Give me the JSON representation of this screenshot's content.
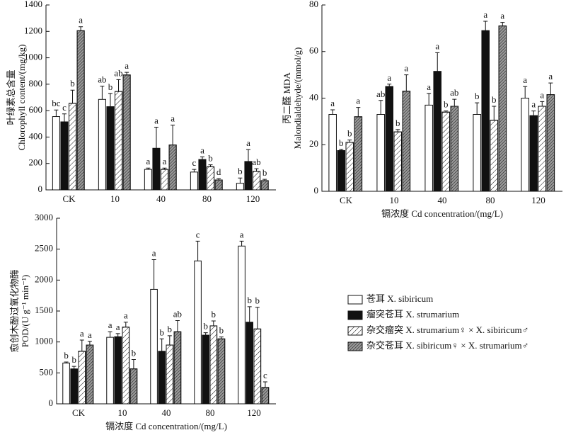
{
  "chart_data": [
    {
      "type": "bar",
      "ylabel": [
        "叶绿素总含量",
        "Chlorophyll content/(mg/kg)"
      ],
      "categories": [
        "CK",
        "10",
        "40",
        "80",
        "120"
      ],
      "ylim": [
        0,
        1400
      ],
      "yticks": [
        0,
        200,
        400,
        600,
        800,
        1000,
        1200,
        1400
      ],
      "series": [
        {
          "name": "苍耳 X. sibiricum",
          "color": "#ffffff",
          "values": [
            555,
            685,
            155,
            135,
            50
          ],
          "errors": [
            50,
            100,
            10,
            20,
            40
          ],
          "letters": [
            "bc",
            "ab",
            "a",
            "c",
            "b"
          ]
        },
        {
          "name": "瘤突苍耳 X. strumarium",
          "color": "#111111",
          "values": [
            515,
            630,
            315,
            230,
            215
          ],
          "errors": [
            60,
            100,
            160,
            20,
            90
          ],
          "letters": [
            "c",
            "b",
            "a",
            "a",
            "a"
          ]
        },
        {
          "name": "杂交瘤突 X. strumarium♀ × X. sibiricum♂",
          "color": "#ffffff",
          "pattern": "sparse",
          "values": [
            655,
            745,
            155,
            175,
            140
          ],
          "errors": [
            100,
            90,
            10,
            15,
            20
          ],
          "letters": [
            "b",
            "ab",
            "a",
            "b",
            "ab"
          ]
        },
        {
          "name": "杂交苍耳 X. sibiricum♀ × X. strumarium♂",
          "color": "#9a9a9a",
          "pattern": "dense",
          "values": [
            1205,
            870,
            340,
            75,
            70
          ],
          "errors": [
            30,
            20,
            150,
            10,
            10
          ],
          "letters": [
            "a",
            "a",
            "a",
            "d",
            "b"
          ]
        }
      ]
    },
    {
      "type": "bar",
      "ylabel": [
        "丙二醛 MDA",
        "Malondialdehyde/(mmol/g)"
      ],
      "xlabel": "镉浓度 Cd concentration/(mg/L)",
      "categories": [
        "CK",
        "10",
        "40",
        "80",
        "120"
      ],
      "ylim": [
        0,
        80
      ],
      "yticks": [
        0,
        20,
        40,
        60,
        80
      ],
      "series": [
        {
          "name": "苍耳 X. sibiricum",
          "color": "#ffffff",
          "values": [
            33,
            33,
            37,
            33,
            40
          ],
          "errors": [
            2,
            6,
            5,
            5,
            5
          ],
          "letters": [
            "a",
            "ab",
            "a",
            "b",
            "a"
          ]
        },
        {
          "name": "瘤突苍耳 X. strumarium",
          "color": "#111111",
          "values": [
            17.5,
            45,
            51.5,
            69,
            32.5
          ],
          "errors": [
            0.5,
            1,
            8,
            4,
            2
          ],
          "letters": [
            "b",
            "a",
            "a",
            "a",
            "a"
          ]
        },
        {
          "name": "杂交瘤突 X. strumarium♀ × X. sibiricum♂",
          "color": "#ffffff",
          "pattern": "sparse",
          "values": [
            21,
            25.5,
            34,
            30.5,
            36.5
          ],
          "errors": [
            1,
            1,
            0.5,
            6,
            2
          ],
          "letters": [
            "b",
            "b",
            "b",
            "b",
            "a"
          ]
        },
        {
          "name": "杂交苍耳 X. sibiricum♀ × X. strumarium♂",
          "color": "#9a9a9a",
          "pattern": "dense",
          "values": [
            32,
            43,
            36.5,
            71,
            41.5
          ],
          "errors": [
            4,
            7,
            3,
            1.5,
            5
          ],
          "letters": [
            "a",
            "a",
            "ab",
            "a",
            "a"
          ]
        }
      ]
    },
    {
      "type": "bar",
      "ylabel": [
        "愈创木酚过氧化物酶",
        "POD/(U g⁻¹ min⁻¹)"
      ],
      "xlabel": "镉浓度 Cd concentration/(mg/L)",
      "categories": [
        "CK",
        "10",
        "40",
        "80",
        "120"
      ],
      "ylim": [
        0,
        3000
      ],
      "yticks": [
        0,
        500,
        1000,
        1500,
        2000,
        2500,
        3000
      ],
      "series": [
        {
          "name": "苍耳 X. sibiricum",
          "color": "#ffffff",
          "values": [
            660,
            1075,
            1850,
            2310,
            2550
          ],
          "errors": [
            15,
            90,
            480,
            320,
            80
          ],
          "letters": [
            "b",
            "a",
            "a",
            "c",
            "a"
          ]
        },
        {
          "name": "瘤突苍耳 X. strumarium",
          "color": "#111111",
          "values": [
            565,
            1085,
            850,
            1110,
            1320
          ],
          "errors": [
            40,
            50,
            200,
            40,
            250
          ],
          "letters": [
            "b",
            "a",
            "b",
            "b",
            "b"
          ]
        },
        {
          "name": "杂交瘤突 X. strumarium♀ × X. sibiricum♂",
          "color": "#ffffff",
          "pattern": "sparse",
          "values": [
            850,
            1240,
            950,
            1260,
            1210
          ],
          "errors": [
            180,
            80,
            150,
            80,
            350
          ],
          "letters": [
            "a",
            "a",
            "b",
            "b",
            "b"
          ]
        },
        {
          "name": "杂交苍耳 X. sibiricum♀ × X. strumarium♂",
          "color": "#9a9a9a",
          "pattern": "dense",
          "values": [
            950,
            565,
            1165,
            1050,
            265
          ],
          "errors": [
            60,
            150,
            180,
            30,
            90
          ],
          "letters": [
            "a",
            "b",
            "ab",
            "b",
            "c"
          ]
        }
      ],
      "legend": "right"
    }
  ]
}
